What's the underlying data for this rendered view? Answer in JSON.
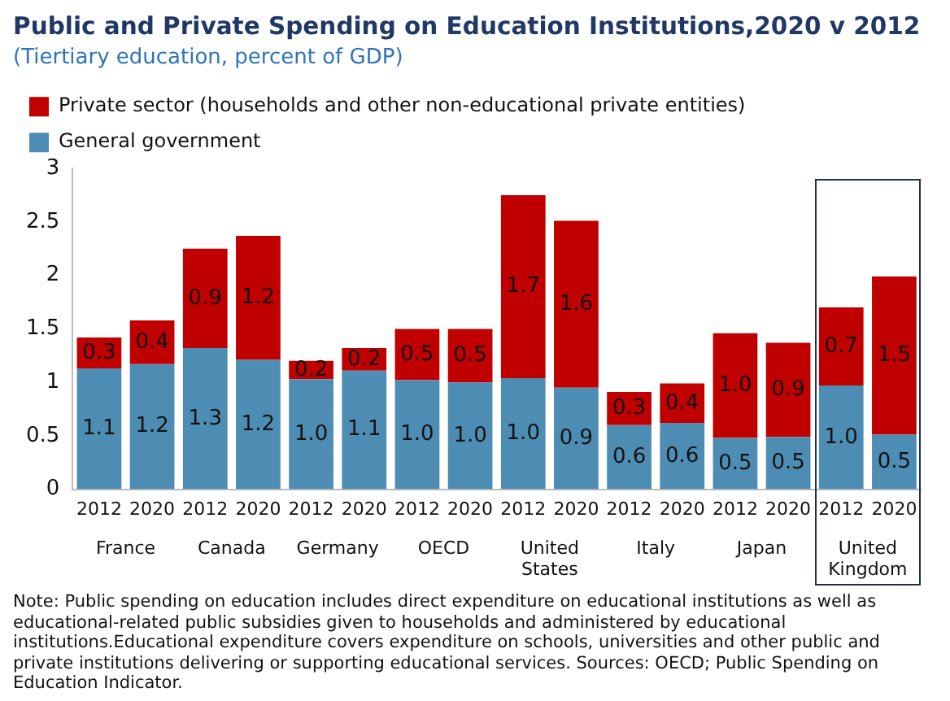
{
  "chart_data": {
    "type": "bar",
    "stacked": true,
    "title": "Public and Private Spending on Education Institutions,2020 v 2012",
    "subtitle": "(Tiertiary education, percent of GDP)",
    "categories": [
      "2012",
      "2020",
      "2012",
      "2020",
      "2012",
      "2020",
      "2012",
      "2020",
      "2012",
      "2020",
      "2012",
      "2020",
      "2012",
      "2020",
      "2012",
      "2020"
    ],
    "series": [
      {
        "name": "General government",
        "color": "#4e8db3",
        "values": [
          1.13,
          1.17,
          1.32,
          1.21,
          1.03,
          1.11,
          1.02,
          1.0,
          1.04,
          0.95,
          0.6,
          0.62,
          0.48,
          0.49,
          0.97,
          0.51
        ],
        "value_labels": [
          "1.1",
          "1.2",
          "1.3",
          "1.2",
          "1.0",
          "1.1",
          "1.0",
          "1.0",
          "1.0",
          "0.9",
          "0.6",
          "0.6",
          "0.5",
          "0.5",
          "1.0",
          "0.5"
        ]
      },
      {
        "name": "Private sector (households and other non-educational private entities)",
        "color": "#c00000",
        "values": [
          0.29,
          0.41,
          0.93,
          1.16,
          0.17,
          0.21,
          0.48,
          0.5,
          1.71,
          1.56,
          0.31,
          0.37,
          0.98,
          0.88,
          0.73,
          1.48
        ],
        "value_labels": [
          "0.3",
          "0.4",
          "0.9",
          "1.2",
          "0.2",
          "0.2",
          "0.5",
          "0.5",
          "1.7",
          "1.6",
          "0.3",
          "0.4",
          "1.0",
          "0.9",
          "0.7",
          "1.5"
        ]
      }
    ],
    "ylim": [
      0,
      3
    ],
    "yticks": [
      0,
      0.5,
      1,
      1.5,
      2,
      2.5,
      3
    ],
    "grid": false,
    "legend": "top left",
    "annotations": [
      "France",
      "Canada",
      "Germany",
      "OECD",
      "United States",
      "Italy",
      "Japan",
      "United Kingdom",
      "Note: Public spending on education includes direct expenditure on educational institutions as well as educational-related public subsidies given to households and administered by educational institutions.Educational expenditure covers expenditure on schools, universities and other public and private institutions delivering or supporting educational services. Sources: OECD; Public Spending on Education Indicator."
    ]
  }
}
